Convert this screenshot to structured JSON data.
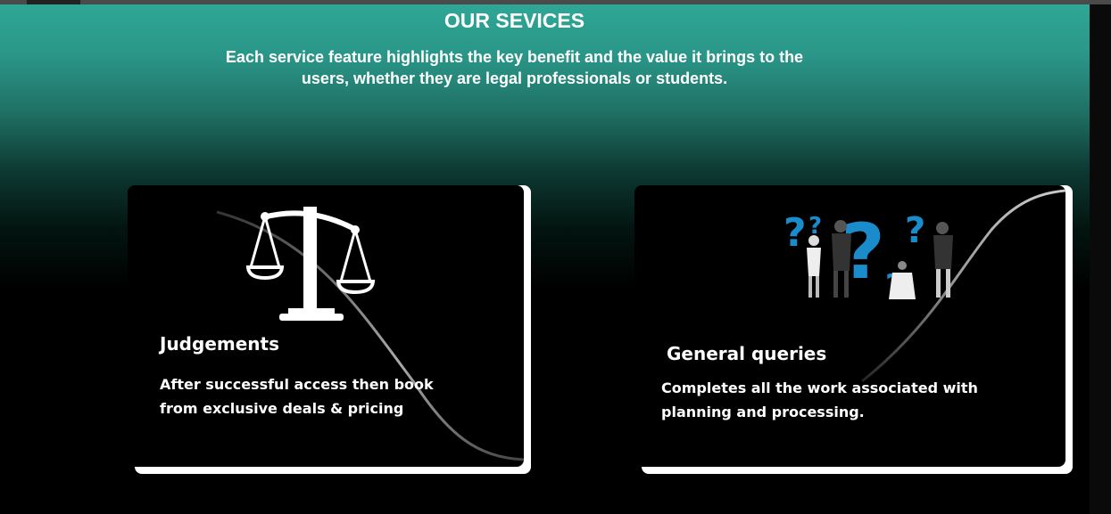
{
  "header": {
    "title": "OUR SEVICES",
    "subtitle": "Each service feature highlights the key benefit and the value it brings to the users, whether they are legal professionals or students."
  },
  "cards": [
    {
      "title": "Judgements",
      "description": "After successful access then book from exclusive deals & pricing",
      "icon": "scales-of-justice-icon"
    },
    {
      "title": "General queries",
      "description": "Completes all the work associated with planning and processing.",
      "icon": "question-marks-people-illustration"
    }
  ],
  "colors": {
    "accent_teal": "#2ea796",
    "accent_blue": "#1a8ccc",
    "card_bg": "#000000",
    "card_border": "#ffffff"
  }
}
